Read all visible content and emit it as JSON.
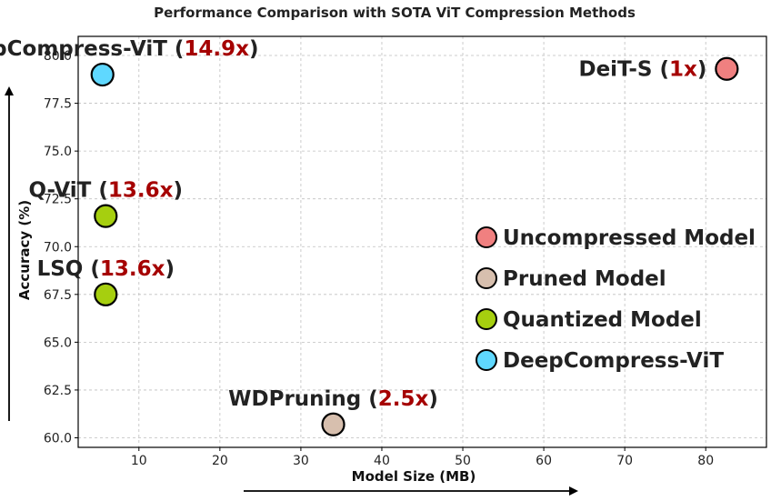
{
  "chart_data": {
    "type": "scatter",
    "title": "Performance Comparison with SOTA ViT Compression Methods",
    "xlabel": "Model Size (MB)",
    "ylabel": "Accuracy (%)",
    "xlim": [
      2.5,
      87.5
    ],
    "ylim": [
      59.5,
      81.0
    ],
    "xticks": [
      10,
      20,
      30,
      40,
      50,
      60,
      70,
      80
    ],
    "yticks": [
      60.0,
      62.5,
      65.0,
      67.5,
      70.0,
      72.5,
      75.0,
      77.5,
      80.0
    ],
    "ytick_labels": [
      "60.0",
      "62.5",
      "65.0",
      "67.5",
      "70.0",
      "72.5",
      "75.0",
      "77.5",
      "80.0"
    ],
    "grid": true,
    "legend_position": "center-right",
    "categories": [
      {
        "key": "uncompressed",
        "name": "Uncompressed Model",
        "color": "#f08080"
      },
      {
        "key": "pruned",
        "name": "Pruned Model",
        "color": "#d7bfae"
      },
      {
        "key": "quantized",
        "name": "Quantized Model",
        "color": "#a6cf0f"
      },
      {
        "key": "deepcompress",
        "name": "DeepCompress-ViT",
        "color": "#5fd8ff"
      }
    ],
    "points": [
      {
        "name": "DeiT-S",
        "ratio": "1x",
        "x": 82.6,
        "y": 79.3,
        "category": "uncompressed",
        "label_anchor": "left"
      },
      {
        "name": "DeepCompress-ViT",
        "ratio": "14.9x",
        "x": 5.5,
        "y": 79.0,
        "category": "deepcompress",
        "label_anchor": "above"
      },
      {
        "name": "Q-ViT",
        "ratio": "13.6x",
        "x": 5.9,
        "y": 71.6,
        "category": "quantized",
        "label_anchor": "above"
      },
      {
        "name": "LSQ",
        "ratio": "13.6x",
        "x": 5.9,
        "y": 67.5,
        "category": "quantized",
        "label_anchor": "above"
      },
      {
        "name": "WDPruning",
        "ratio": "2.5x",
        "x": 34.0,
        "y": 60.7,
        "category": "pruned",
        "label_anchor": "above"
      }
    ]
  }
}
